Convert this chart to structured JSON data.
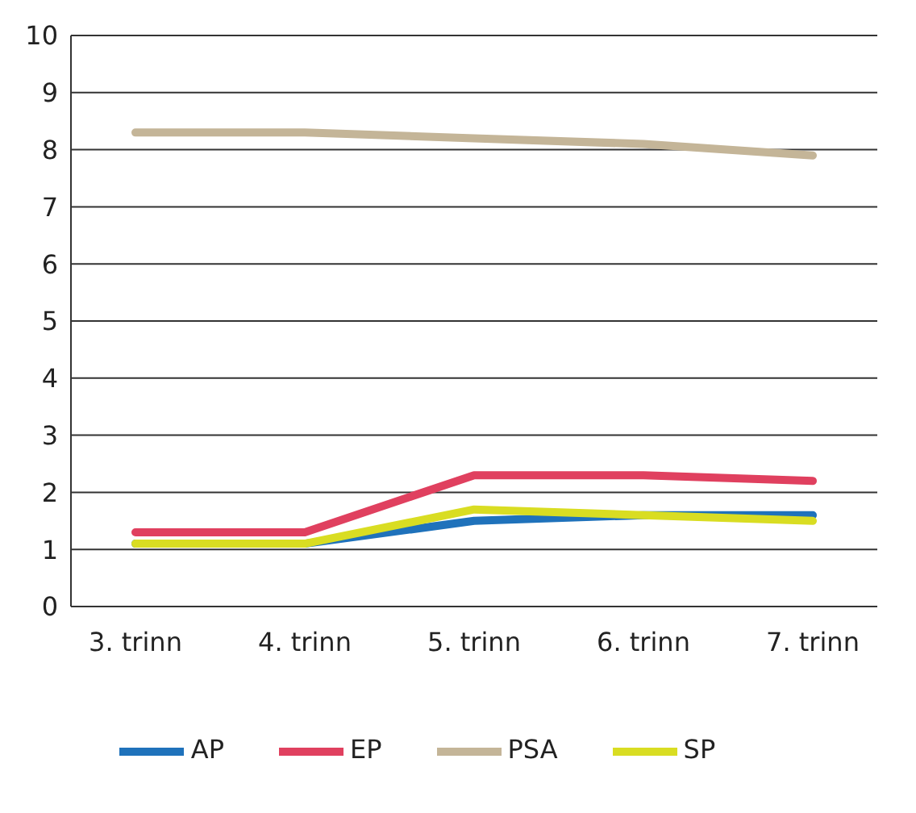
{
  "chart_data": {
    "type": "line",
    "categories": [
      "3. trinn",
      "4. trinn",
      "5. trinn",
      "6. trinn",
      "7. trinn"
    ],
    "series": [
      {
        "name": "EP",
        "color": "#e0405f",
        "values": [
          1.3,
          1.3,
          2.3,
          2.3,
          2.2
        ]
      },
      {
        "name": "AP",
        "color": "#1f72bb",
        "values": [
          1.1,
          1.1,
          1.5,
          1.6,
          1.6
        ]
      },
      {
        "name": "SP",
        "color": "#d9dd22",
        "values": [
          1.1,
          1.1,
          1.7,
          1.6,
          1.5
        ]
      },
      {
        "name": "PSA",
        "color": "#c4b598",
        "values": [
          8.3,
          8.3,
          8.2,
          8.1,
          7.9
        ]
      }
    ],
    "ylim": [
      0,
      10
    ],
    "yticks": [
      0,
      1,
      2,
      3,
      4,
      5,
      6,
      7,
      8,
      9,
      10
    ],
    "grid": "y",
    "legend": "bottom",
    "marker": "none",
    "line_style": "solid"
  }
}
